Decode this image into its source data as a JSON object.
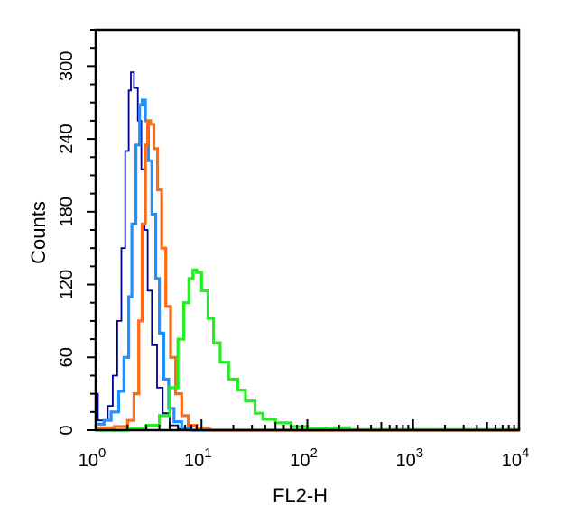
{
  "chart_data": {
    "type": "line",
    "title": "",
    "xlabel": "FL2-H",
    "ylabel": "Counts",
    "x_scale": "log",
    "xlim": [
      1,
      10000
    ],
    "ylim": [
      0,
      330
    ],
    "x_ticks": [
      {
        "value": 1,
        "base": "10",
        "exp": "0"
      },
      {
        "value": 10,
        "base": "10",
        "exp": "1"
      },
      {
        "value": 100,
        "base": "10",
        "exp": "2"
      },
      {
        "value": 1000,
        "base": "10",
        "exp": "3"
      },
      {
        "value": 10000,
        "base": "10",
        "exp": "4"
      }
    ],
    "y_ticks": [
      {
        "value": 0,
        "label": "0"
      },
      {
        "value": 60,
        "label": "60"
      },
      {
        "value": 120,
        "label": "120"
      },
      {
        "value": 180,
        "label": "180"
      },
      {
        "value": 240,
        "label": "240"
      },
      {
        "value": 300,
        "label": "300"
      }
    ],
    "grid": false,
    "series": [
      {
        "color": "#00008b",
        "points": [
          [
            1.0,
            30
          ],
          [
            1.05,
            8
          ],
          [
            1.15,
            8
          ],
          [
            1.3,
            20
          ],
          [
            1.45,
            45
          ],
          [
            1.6,
            90
          ],
          [
            1.75,
            150
          ],
          [
            1.9,
            230
          ],
          [
            2.05,
            280
          ],
          [
            2.15,
            295
          ],
          [
            2.3,
            282
          ],
          [
            2.5,
            255
          ],
          [
            2.7,
            215
          ],
          [
            2.9,
            165
          ],
          [
            3.1,
            115
          ],
          [
            3.4,
            70
          ],
          [
            3.8,
            35
          ],
          [
            4.3,
            14
          ],
          [
            5.0,
            4
          ],
          [
            6.0,
            1
          ],
          [
            8.0,
            0
          ],
          [
            10000,
            0
          ]
        ]
      },
      {
        "color": "#1e90ff",
        "points": [
          [
            1.0,
            5
          ],
          [
            1.2,
            8
          ],
          [
            1.4,
            15
          ],
          [
            1.65,
            32
          ],
          [
            1.85,
            60
          ],
          [
            2.05,
            110
          ],
          [
            2.2,
            170
          ],
          [
            2.4,
            235
          ],
          [
            2.6,
            268
          ],
          [
            2.75,
            272
          ],
          [
            2.95,
            255
          ],
          [
            3.15,
            222
          ],
          [
            3.4,
            178
          ],
          [
            3.7,
            125
          ],
          [
            4.0,
            80
          ],
          [
            4.4,
            42
          ],
          [
            4.9,
            18
          ],
          [
            5.5,
            7
          ],
          [
            6.5,
            2
          ],
          [
            8.0,
            0
          ],
          [
            10000,
            0
          ]
        ]
      },
      {
        "color": "#ff6a14",
        "points": [
          [
            1.0,
            2
          ],
          [
            1.5,
            3
          ],
          [
            2.0,
            8
          ],
          [
            2.3,
            30
          ],
          [
            2.55,
            90
          ],
          [
            2.75,
            170
          ],
          [
            2.95,
            235
          ],
          [
            3.1,
            255
          ],
          [
            3.3,
            252
          ],
          [
            3.55,
            232
          ],
          [
            3.85,
            198
          ],
          [
            4.2,
            150
          ],
          [
            4.6,
            102
          ],
          [
            5.1,
            60
          ],
          [
            5.7,
            30
          ],
          [
            6.5,
            12
          ],
          [
            7.5,
            4
          ],
          [
            9.0,
            1
          ],
          [
            12.0,
            0
          ],
          [
            10000,
            0
          ]
        ]
      },
      {
        "color": "#22ee22",
        "points": [
          [
            1.0,
            0
          ],
          [
            2.0,
            1
          ],
          [
            3.0,
            4
          ],
          [
            4.0,
            12
          ],
          [
            5.0,
            35
          ],
          [
            6.0,
            75
          ],
          [
            6.8,
            105
          ],
          [
            7.6,
            125
          ],
          [
            8.3,
            132
          ],
          [
            9.0,
            130
          ],
          [
            10.0,
            115
          ],
          [
            11.5,
            92
          ],
          [
            13.0,
            72
          ],
          [
            15.0,
            56
          ],
          [
            18.0,
            42
          ],
          [
            22.0,
            33
          ],
          [
            26.0,
            24
          ],
          [
            32.0,
            14
          ],
          [
            38.0,
            9
          ],
          [
            50.0,
            6
          ],
          [
            70.0,
            3
          ],
          [
            100.0,
            1.5
          ],
          [
            150.0,
            1
          ],
          [
            180.0,
            2
          ],
          [
            250.0,
            0.5
          ],
          [
            10000,
            0
          ]
        ]
      }
    ]
  }
}
